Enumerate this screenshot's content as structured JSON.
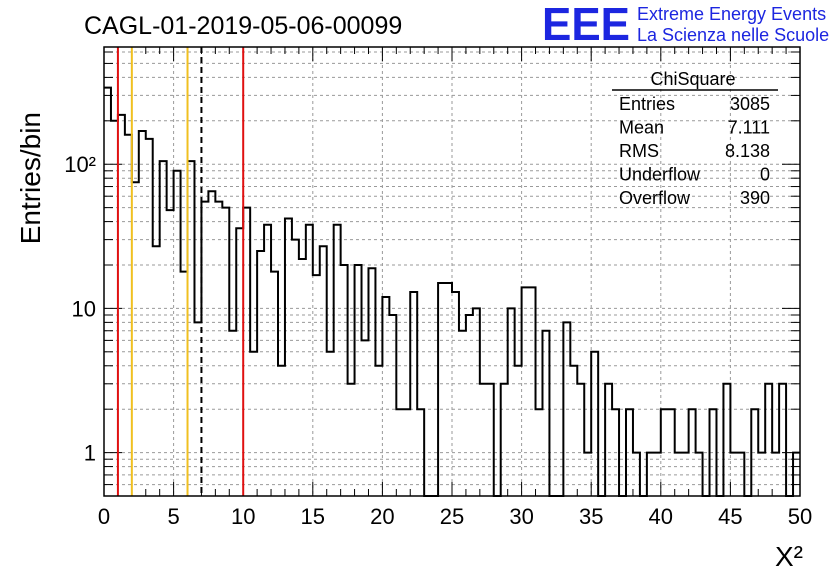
{
  "header": {
    "title": "CAGL-01-2019-05-06-00099",
    "logo": "EEE",
    "logo_line1": "Extreme Energy Events",
    "logo_line2": "La Scienza nelle Scuole"
  },
  "stats": {
    "title": "ChiSquare",
    "rows": [
      {
        "label": "Entries",
        "value": "3085"
      },
      {
        "label": "Mean",
        "value": "7.111"
      },
      {
        "label": "RMS",
        "value": "8.138"
      },
      {
        "label": "Underflow",
        "value": "0"
      },
      {
        "label": "Overflow",
        "value": "390"
      }
    ]
  },
  "chart_data": {
    "type": "histogram",
    "title": "CAGL-01-2019-05-06-00099",
    "xlabel": "X²",
    "ylabel": "Entries/bin",
    "xlim": [
      0,
      50
    ],
    "ylim": [
      0.5,
      650
    ],
    "ylog": true,
    "grid": true,
    "bin_width": 0.5,
    "x_ticks": [
      "0",
      "5",
      "10",
      "15",
      "20",
      "25",
      "30",
      "35",
      "40",
      "45",
      "50"
    ],
    "y_ticks": [
      {
        "value": 1,
        "label": "1"
      },
      {
        "value": 10,
        "label": "10"
      },
      {
        "value": 100,
        "label": "10²"
      }
    ],
    "values": [
      340,
      200,
      220,
      160,
      75,
      170,
      150,
      27,
      105,
      48,
      90,
      18,
      105,
      8,
      55,
      65,
      55,
      50,
      7,
      36,
      50,
      5,
      25,
      38,
      18,
      4,
      42,
      30,
      22,
      38,
      17,
      27,
      5,
      38,
      20,
      3,
      20,
      6,
      19,
      4,
      12,
      9,
      2,
      2,
      13,
      2,
      0,
      0,
      15,
      15,
      13,
      7,
      9,
      10,
      3,
      3,
      0,
      3,
      10,
      4,
      14,
      14,
      2,
      7,
      0,
      0,
      8,
      4,
      3,
      1,
      5,
      0,
      3,
      2,
      0,
      2,
      1,
      0,
      1,
      1,
      2,
      2,
      1,
      1,
      2,
      1,
      0,
      2,
      0,
      3,
      1,
      1,
      0,
      2,
      1,
      3,
      1,
      3,
      0,
      1
    ],
    "vertical_lines": [
      {
        "x": 1,
        "color": "#e01010",
        "style": "solid"
      },
      {
        "x": 2,
        "color": "#f0c020",
        "style": "solid"
      },
      {
        "x": 6,
        "color": "#f0c020",
        "style": "solid"
      },
      {
        "x": 7,
        "color": "#000000",
        "style": "dashed"
      },
      {
        "x": 10,
        "color": "#e01010",
        "style": "solid"
      }
    ]
  }
}
